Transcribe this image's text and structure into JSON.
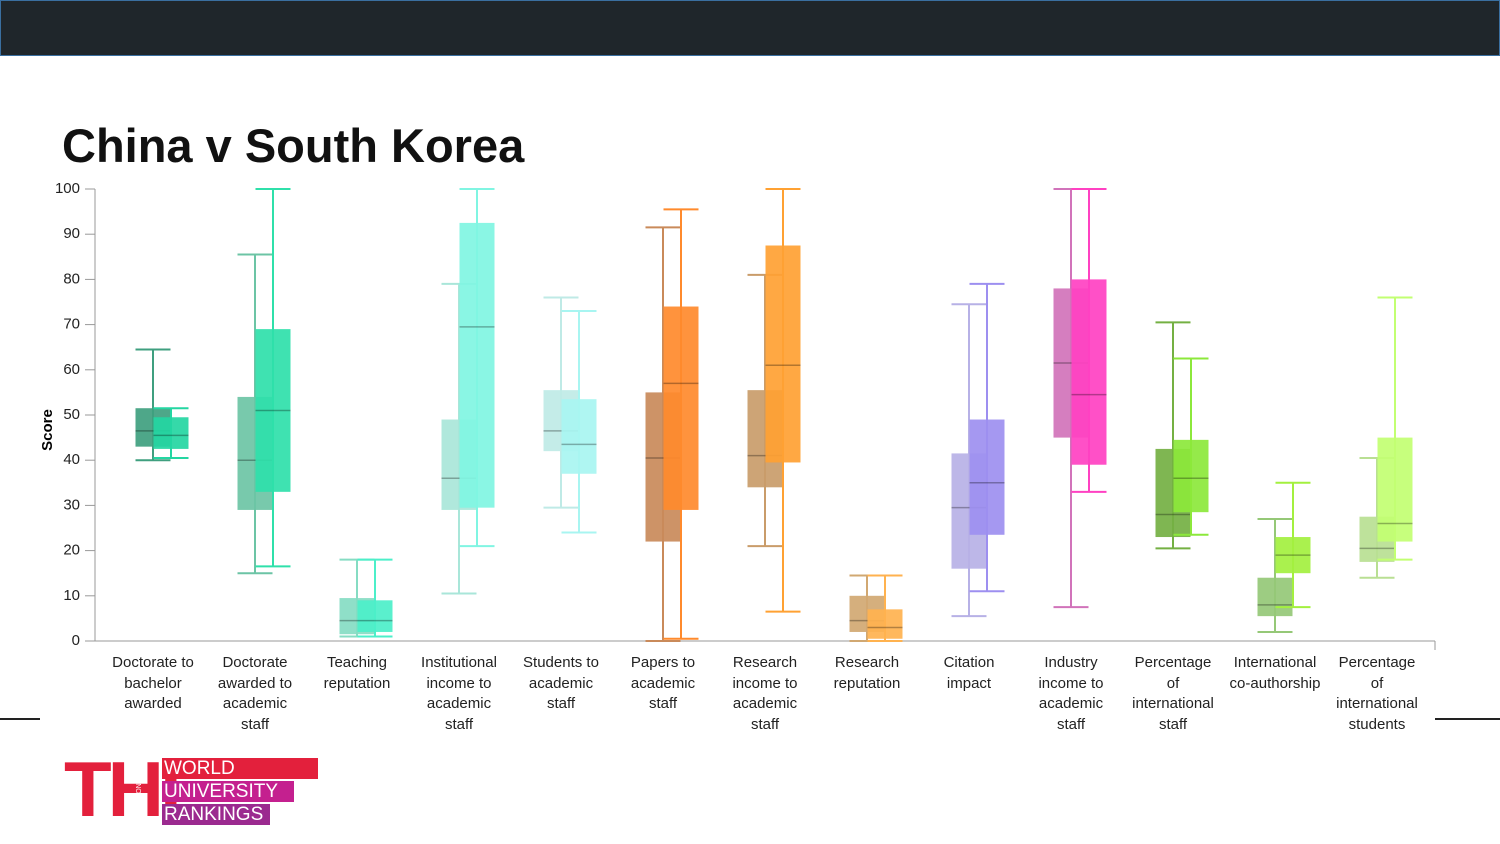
{
  "chart_data": {
    "type": "box",
    "title": "China v South Korea",
    "y_label": "Score",
    "categories": [
      "Doctorate to\nbachelor\nawarded",
      "Doctorate\nawarded to\nacademic\nstaff",
      "Teaching\nreputation",
      "Institutional\nincome to\nacademic\nstaff",
      "Students to\nacademic\nstaff",
      "Papers to\nacademic\nstaff",
      "Research\nincome to\nacademic\nstaff",
      "Research\nreputation",
      "Citation\nimpact",
      "Industry\nincome to\nacademic\nstaff",
      "Percentage\nof\ninternational\nstaff",
      "International\nco-authorship",
      "Percentage\nof\ninternational\nstudents"
    ],
    "series": [
      {
        "values": [
          [
            40,
            43,
            46.5,
            51.5,
            64.5
          ],
          [
            15,
            29,
            40,
            54,
            85.5
          ],
          [
            1,
            1.5,
            4.5,
            9.5,
            18
          ],
          [
            10.5,
            29,
            36,
            49,
            79
          ],
          [
            29.5,
            42,
            46.5,
            55.5,
            76
          ],
          [
            0,
            22,
            40.5,
            55,
            91.5
          ],
          [
            21,
            34,
            41,
            55.5,
            81
          ],
          [
            0,
            2,
            4.5,
            10,
            14.5
          ],
          [
            5.5,
            16,
            29.5,
            41.5,
            74.5
          ],
          [
            7.5,
            45,
            61.5,
            78,
            100
          ],
          [
            20.5,
            23,
            28,
            42.5,
            70.5
          ],
          [
            2,
            5.5,
            8,
            14,
            27
          ],
          [
            14,
            17.5,
            20.5,
            27.5,
            40.5
          ]
        ],
        "colors": [
          "#3f9f7f",
          "#6cc4a5",
          "#86dcc3",
          "#a9e6d9",
          "#bfeae6",
          "#c98a5a",
          "#c99c6a",
          "#d1a872",
          "#b7b1e6",
          "#d173ba",
          "#74b043",
          "#95c877",
          "#b9df93"
        ]
      },
      {
        "values": [
          [
            40.5,
            42.5,
            45.5,
            49.5,
            51.5
          ],
          [
            16.5,
            33,
            51,
            69,
            100
          ],
          [
            1,
            2,
            4.5,
            9,
            18
          ],
          [
            21,
            29.5,
            69.5,
            92.5,
            100
          ],
          [
            24,
            37,
            43.5,
            53.5,
            73
          ],
          [
            0.5,
            29,
            57,
            74,
            95.5
          ],
          [
            6.5,
            39.5,
            61,
            87.5,
            100
          ],
          [
            0,
            0.5,
            3,
            7,
            14.5
          ],
          [
            11,
            23.5,
            35,
            49,
            79
          ],
          [
            33,
            39,
            54.5,
            80,
            100
          ],
          [
            23.5,
            28.5,
            36,
            44.5,
            62.5
          ],
          [
            7.5,
            15,
            19,
            23,
            35
          ],
          [
            18,
            22,
            26,
            45,
            76
          ]
        ],
        "colors": [
          "#24d6a2",
          "#2fe0aa",
          "#4cefc9",
          "#80f5e2",
          "#a8f5f1",
          "#ff8a2c",
          "#ffa133",
          "#ffb24f",
          "#9d8ff0",
          "#ff41c2",
          "#8ce83b",
          "#a3f03f",
          "#c2ff72"
        ]
      }
    ],
    "ylim": [
      0,
      100
    ],
    "yticks": [
      0,
      10,
      20,
      30,
      40,
      50,
      60,
      70,
      80,
      90,
      100
    ]
  },
  "logo": {
    "mark": "THE",
    "small": [
      "TIMES",
      "HIGHER",
      "EDUCATION"
    ],
    "lines": [
      "WORLD",
      "UNIVERSITY",
      "RANKINGS"
    ]
  }
}
